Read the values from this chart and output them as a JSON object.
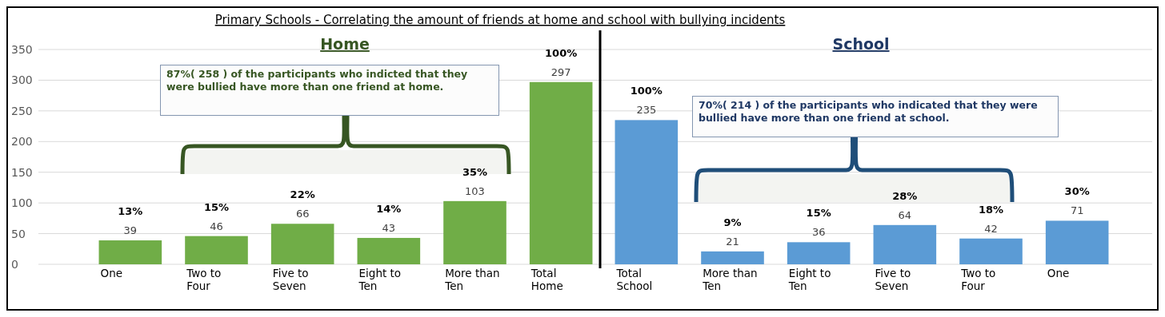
{
  "chart_data": [
    {
      "type": "bar",
      "title": "Primary Schools - Correlating the amount of friends at home and school with bullying incidents",
      "subtitle": "Home",
      "categories": [
        "One",
        "Two to Four",
        "Five to Seven",
        "Eight to Ten",
        "More than Ten",
        "Total Home"
      ],
      "values": [
        39,
        46,
        66,
        43,
        103,
        297
      ],
      "color": "#70ad47",
      "data_labels": true,
      "ylim": [
        0,
        350
      ],
      "yticks": [
        0,
        50,
        100,
        150,
        200,
        250,
        300,
        350
      ],
      "grid": "y",
      "annotations": [
        "87%( 258 ) of the participants who indicted that they were bullied have more than one friend at home.",
        {
          "text": "13%",
          "x": "One",
          "y": 39
        },
        {
          "text": "15%",
          "x": "Two to Four",
          "y": 46
        },
        {
          "text": "22%",
          "x": "Five to Seven",
          "y": 66
        },
        {
          "text": "14%",
          "x": "Eight to Ten",
          "y": 43
        },
        {
          "text": "35%",
          "x": "More than Ten",
          "y": 103
        },
        {
          "text": "100%",
          "x": "Total Home",
          "y": 297
        }
      ]
    },
    {
      "type": "bar",
      "subtitle": "School",
      "categories": [
        "Total School",
        "More than Ten",
        "Eight to Ten",
        "Five to Seven",
        "Two to Four",
        "One"
      ],
      "values": [
        235,
        21,
        36,
        64,
        42,
        71
      ],
      "color": "#5b9bd5",
      "data_labels": true,
      "ylim": [
        0,
        350
      ],
      "yticks": [
        0,
        50,
        100,
        150,
        200,
        250,
        300,
        350
      ],
      "grid": "y",
      "tick_labels": "x",
      "annotations": [
        "70%( 214 ) of the participants who indicated that they were bullied have more than one friend at school.",
        {
          "text": "100%",
          "x": "Total School",
          "y": 235
        },
        {
          "text": "9%",
          "x": "More than Ten",
          "y": 21
        },
        {
          "text": "15%",
          "x": "Eight to Ten",
          "y": 36
        },
        {
          "text": "28%",
          "x": "Five to Seven",
          "y": 64
        },
        {
          "text": "18%",
          "x": "Two to Four",
          "y": 42
        },
        {
          "text": "30%",
          "x": "One",
          "y": 71
        }
      ]
    }
  ]
}
